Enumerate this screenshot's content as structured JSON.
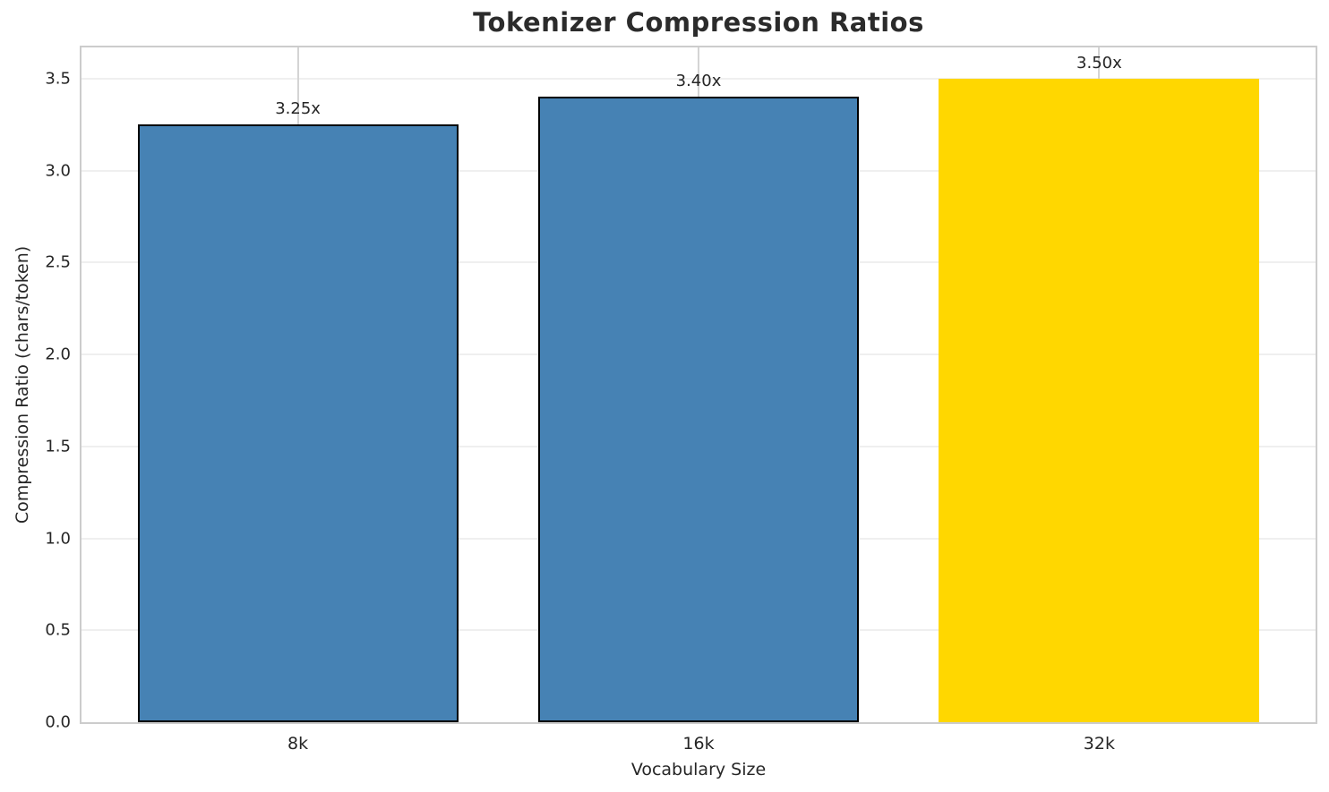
{
  "chart_data": {
    "type": "bar",
    "title": "Tokenizer Compression Ratios",
    "xlabel": "Vocabulary Size",
    "ylabel": "Compression Ratio (chars/token)",
    "categories": [
      "8k",
      "16k",
      "32k"
    ],
    "values": [
      3.25,
      3.4,
      3.5
    ],
    "bar_labels": [
      "3.25x",
      "3.40x",
      "3.50x"
    ],
    "bar_colors": [
      "#4682b4",
      "#4682b4",
      "#ffd700"
    ],
    "bar_edge_colors": [
      "#000000",
      "#000000",
      "none"
    ],
    "ylim": [
      0,
      3.67
    ],
    "yticks": [
      0.0,
      0.5,
      1.0,
      1.5,
      2.0,
      2.5,
      3.0,
      3.5
    ],
    "ytick_labels": [
      "0.0",
      "0.5",
      "1.0",
      "1.5",
      "2.0",
      "2.5",
      "3.0",
      "3.5"
    ],
    "grid": true,
    "legend": "none",
    "grid_color_horizontal": "#efefef",
    "grid_color_vertical": "#d4d4d4",
    "spine_color": "#cccccc"
  }
}
